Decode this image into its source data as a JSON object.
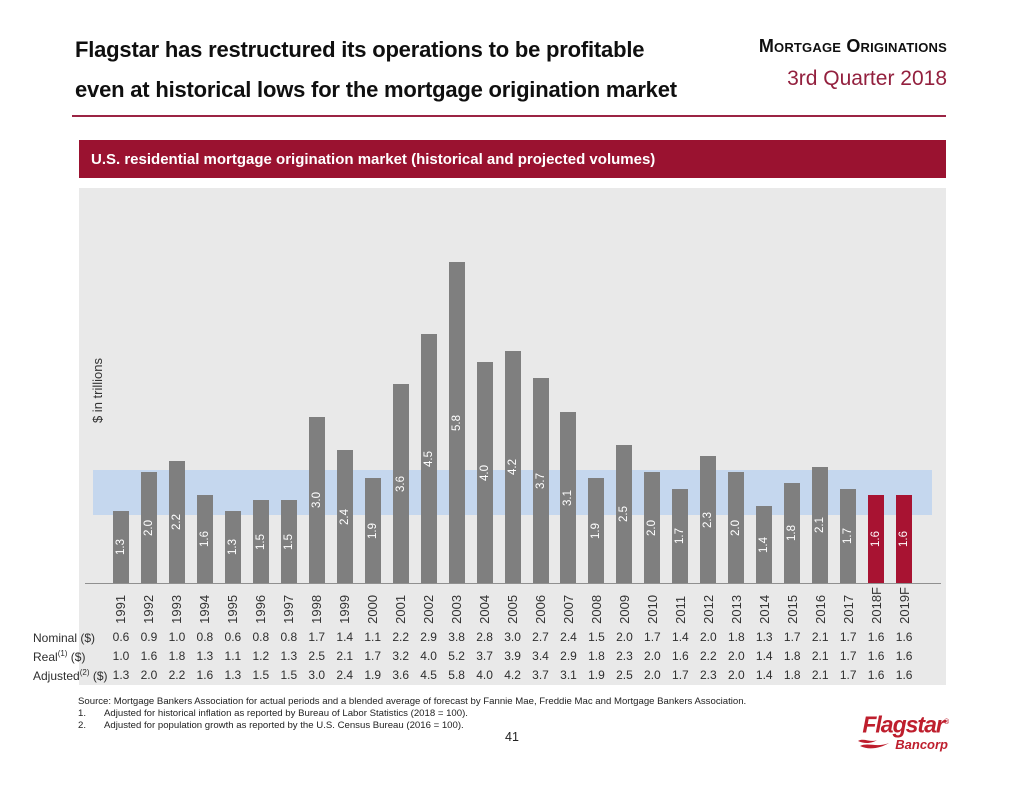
{
  "header": {
    "title_line1": "Flagstar has restructured its operations to be profitable",
    "title_line2": "even at historical lows for the mortgage origination market",
    "right_label": "Mortgage Originations",
    "right_subtitle": "3rd Quarter 2018"
  },
  "banner": {
    "text": "U.S. residential mortgage origination market (historical and projected volumes)"
  },
  "chart_data": {
    "type": "bar",
    "title": "U.S. residential mortgage origination market (historical and projected volumes)",
    "ylabel": "$ in trillions",
    "xlabel": "",
    "categories": [
      "1991",
      "1992",
      "1993",
      "1994",
      "1995",
      "1996",
      "1997",
      "1998",
      "1999",
      "2000",
      "2001",
      "2002",
      "2003",
      "2004",
      "2005",
      "2006",
      "2007",
      "2008",
      "2009",
      "2010",
      "2011",
      "2012",
      "2013",
      "2014",
      "2015",
      "2016",
      "2017",
      "2018F",
      "2019F"
    ],
    "values": [
      1.3,
      2.0,
      2.2,
      1.6,
      1.3,
      1.5,
      1.5,
      3.0,
      2.4,
      1.9,
      3.6,
      4.5,
      5.8,
      4.0,
      4.2,
      3.7,
      3.1,
      1.9,
      2.5,
      2.0,
      1.7,
      2.3,
      2.0,
      1.4,
      1.8,
      2.1,
      1.7,
      1.6,
      1.6
    ],
    "values_series_name": "Adjusted ($ in trillions)",
    "bar_color": "#7F7F7F",
    "forecast_color": "#A81332",
    "forecast_categories": [
      "2018F",
      "2019F"
    ],
    "highlight_band": {
      "from": 1.23,
      "to": 2.04,
      "color": "#C5D7EE"
    },
    "ylim": [
      0,
      7.2
    ],
    "grid": "off",
    "legend": "none",
    "value_labels": "rotated, white, centered inside bars"
  },
  "table": {
    "rows": [
      {
        "label_pre": "Nominal",
        "label_sup": "",
        "label_post": " ($)",
        "values": [
          0.6,
          0.9,
          1.0,
          0.8,
          0.6,
          0.8,
          0.8,
          1.7,
          1.4,
          1.1,
          2.2,
          2.9,
          3.8,
          2.8,
          3.0,
          2.7,
          2.4,
          1.5,
          2.0,
          1.7,
          1.4,
          2.0,
          1.8,
          1.3,
          1.7,
          2.1,
          1.7,
          1.6,
          1.6
        ]
      },
      {
        "label_pre": "Real",
        "label_sup": "(1)",
        "label_post": " ($)",
        "values": [
          1.0,
          1.6,
          1.8,
          1.3,
          1.1,
          1.2,
          1.3,
          2.5,
          2.1,
          1.7,
          3.2,
          4.0,
          5.2,
          3.7,
          3.9,
          3.4,
          2.9,
          1.8,
          2.3,
          2.0,
          1.6,
          2.2,
          2.0,
          1.4,
          1.8,
          2.1,
          1.7,
          1.6,
          1.6
        ]
      },
      {
        "label_pre": "Adjusted",
        "label_sup": "(2)",
        "label_post": " ($)",
        "values": [
          1.3,
          2.0,
          2.2,
          1.6,
          1.3,
          1.5,
          1.5,
          3.0,
          2.4,
          1.9,
          3.6,
          4.5,
          5.8,
          4.0,
          4.2,
          3.7,
          3.1,
          1.9,
          2.5,
          2.0,
          1.7,
          2.3,
          2.0,
          1.4,
          1.8,
          2.1,
          1.7,
          1.6,
          1.6
        ]
      }
    ]
  },
  "footnotes": {
    "source": "Source: Mortgage Bankers Association for actual periods and a blended average of forecast by Fannie Mae, Freddie Mac and Mortgage Bankers Association.",
    "note1_num": "1.",
    "note1_text": "Adjusted for historical inflation as reported by Bureau of Labor Statistics (2018 = 100).",
    "note2_num": "2.",
    "note2_text": "Adjusted for population growth as reported by the U.S. Census Bureau (2016 = 100)."
  },
  "page_number": "41",
  "logo": {
    "name": "Flagstar",
    "reg": "®",
    "sub": "Bancorp"
  },
  "colors": {
    "banner_maroon": "#9A1230",
    "rule_maroon": "#9B2444",
    "quarter_text": "#93203E",
    "panel_gray": "#E9E9E9",
    "bar_gray": "#7F7F7F",
    "forecast_maroon": "#A81332",
    "band_blue": "#C5D7EE",
    "logo_red": "#BE1E2D"
  }
}
